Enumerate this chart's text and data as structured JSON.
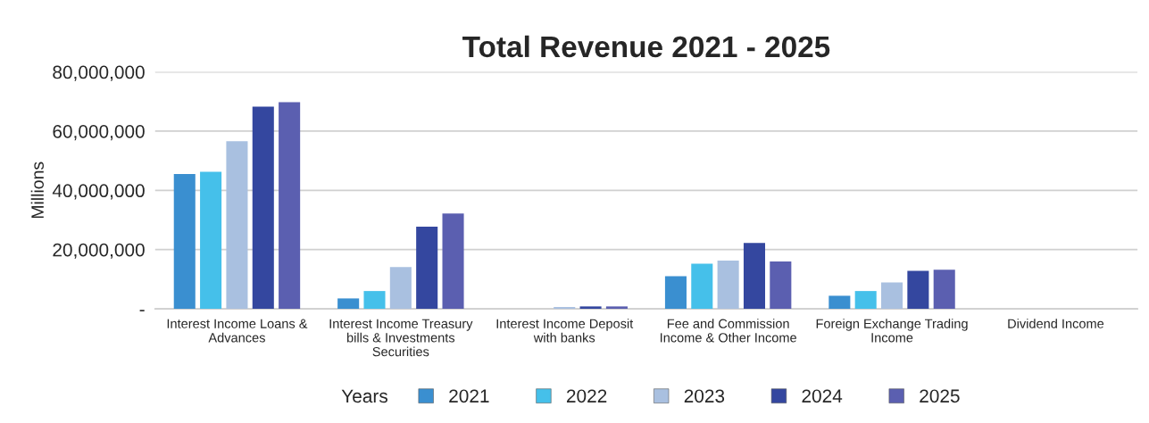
{
  "chart_data": {
    "type": "bar",
    "title": "Total Revenue 2021 - 2025",
    "ylabel": "Millions",
    "legend_title": "Years",
    "categories": [
      "Interest Income Loans & Advances",
      "Interest Income Treasury bills & Investments Securities",
      "Interest Income Deposit with banks",
      "Fee and Commission Income & Other Income",
      "Foreign Exchange Trading Income",
      "Dividend Income"
    ],
    "series": [
      {
        "name": "2021",
        "color": "#3a8fd0",
        "values": [
          45500000,
          3500000,
          0,
          11000000,
          4400000,
          0
        ]
      },
      {
        "name": "2022",
        "color": "#45c0ea",
        "values": [
          46300000,
          6000000,
          0,
          15200000,
          6000000,
          0
        ]
      },
      {
        "name": "2023",
        "color": "#a9c0e0",
        "values": [
          56600000,
          14100000,
          600000,
          16300000,
          8900000,
          0
        ]
      },
      {
        "name": "2024",
        "color": "#34479f",
        "values": [
          68300000,
          27700000,
          800000,
          22200000,
          12800000,
          0
        ]
      },
      {
        "name": "2025",
        "color": "#5b5fb0",
        "values": [
          69800000,
          32200000,
          800000,
          16000000,
          13200000,
          0
        ]
      }
    ],
    "ylim": [
      0,
      80000000
    ],
    "yticks": [
      {
        "value": 0,
        "label": "-"
      },
      {
        "value": 20000000,
        "label": "20,000,000"
      },
      {
        "value": 40000000,
        "label": "40,000,000"
      },
      {
        "value": 60000000,
        "label": "60,000,000"
      },
      {
        "value": 80000000,
        "label": "80,000,000"
      }
    ],
    "grid": "y",
    "legend": "bottom"
  }
}
